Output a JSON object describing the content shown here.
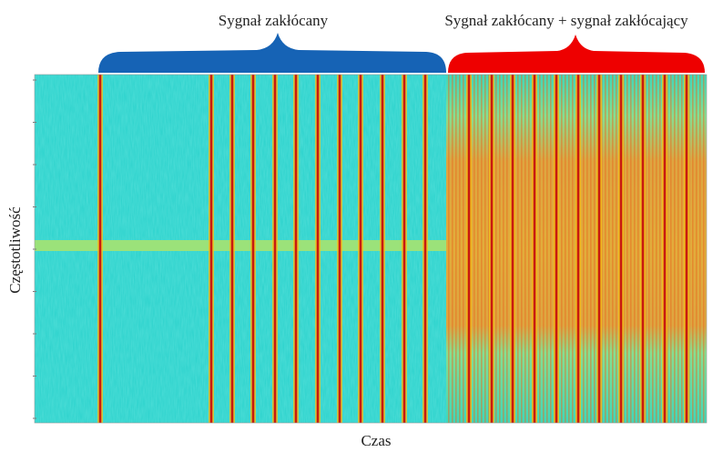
{
  "header": {
    "left_label": "Sygnał zakłócany",
    "right_label": "Sygnał zakłócany + sygnał zakłócający"
  },
  "axes": {
    "y_label": "Częstotliwość",
    "x_label": "Czas"
  }
}
